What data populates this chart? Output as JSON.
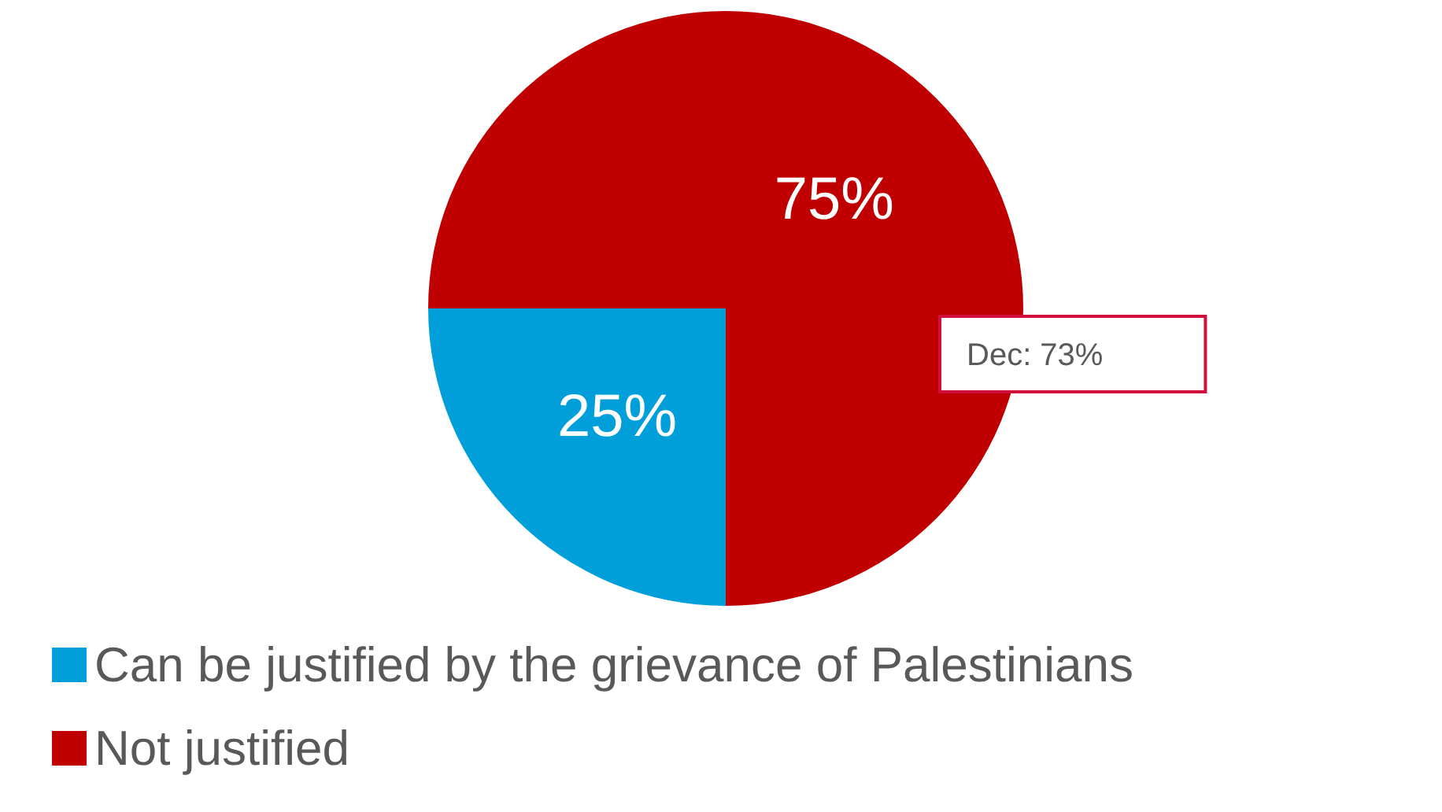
{
  "chart_data": {
    "type": "pie",
    "categories": [
      "Can be justified by the grievance of Palestinians",
      "Not justified"
    ],
    "values": [
      25,
      75
    ],
    "colors": [
      "#009fd9",
      "#c00000"
    ],
    "value_labels": [
      "25%",
      "75%"
    ],
    "annotations": [
      "Dec: 73%"
    ],
    "legend": "bottom"
  }
}
